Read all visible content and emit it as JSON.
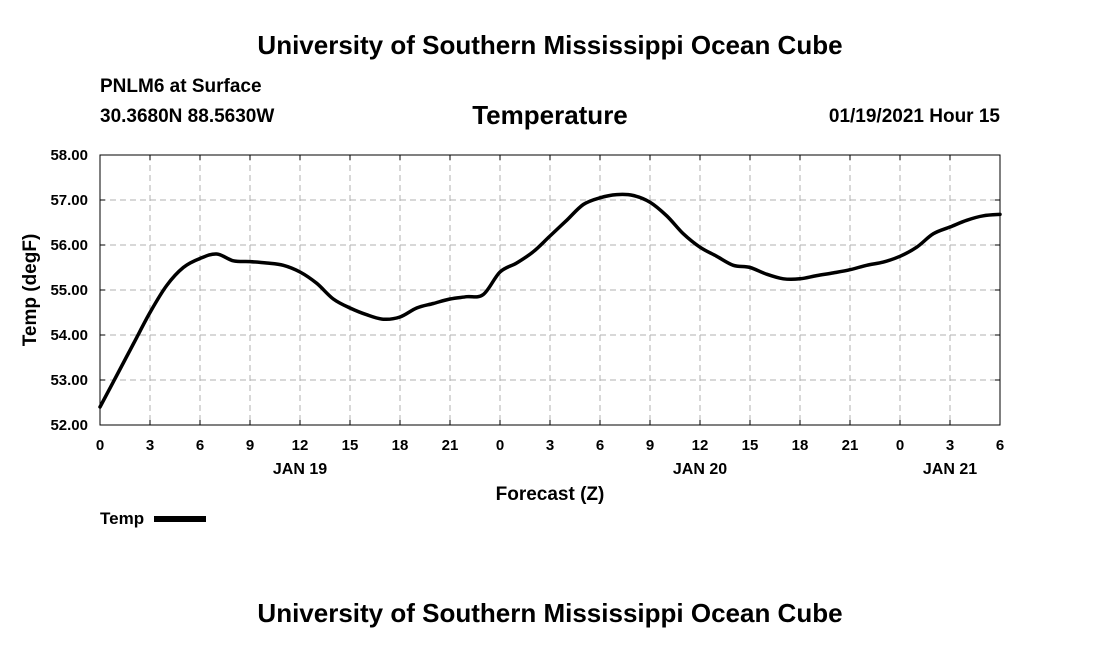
{
  "header": {
    "title": "University of Southern Mississippi Ocean Cube",
    "station": "PNLM6 at Surface",
    "coords": "30.3680N 88.5630W",
    "variable": "Temperature",
    "datetime": "01/19/2021 Hour 15"
  },
  "footer": {
    "title": "University of Southern Mississippi Ocean Cube"
  },
  "legend": {
    "label": "Temp"
  },
  "chart_data": {
    "type": "line",
    "title": "Temperature",
    "xlabel": "Forecast (Z)",
    "ylabel": "Temp (degF)",
    "ylim": [
      52.0,
      58.0
    ],
    "xlim": [
      0,
      54
    ],
    "grid": true,
    "yticks": [
      "52.00",
      "53.00",
      "54.00",
      "55.00",
      "56.00",
      "57.00",
      "58.00"
    ],
    "ytick_values": [
      52,
      53,
      54,
      55,
      56,
      57,
      58
    ],
    "xtick_hours": [
      0,
      3,
      6,
      9,
      12,
      15,
      18,
      21,
      24,
      27,
      30,
      33,
      36,
      39,
      42,
      45,
      48,
      51,
      54
    ],
    "xtick_labels": [
      "0",
      "3",
      "6",
      "9",
      "12",
      "15",
      "18",
      "21",
      "0",
      "3",
      "6",
      "9",
      "12",
      "15",
      "18",
      "21",
      "0",
      "3",
      "6"
    ],
    "day_labels": [
      {
        "hour": 12,
        "label": "JAN 19"
      },
      {
        "hour": 36,
        "label": "JAN 20"
      },
      {
        "hour": 51,
        "label": "JAN 21"
      }
    ],
    "series": [
      {
        "name": "Temp",
        "color": "#000000",
        "x": [
          0,
          1,
          2,
          3,
          4,
          5,
          6,
          7,
          8,
          9,
          10,
          11,
          12,
          13,
          14,
          15,
          16,
          17,
          18,
          19,
          20,
          21,
          22,
          23,
          24,
          25,
          26,
          27,
          28,
          29,
          30,
          31,
          32,
          33,
          34,
          35,
          36,
          37,
          38,
          39,
          40,
          41,
          42,
          43,
          44,
          45,
          46,
          47,
          48,
          49,
          50,
          51,
          52,
          53,
          54
        ],
        "y": [
          52.4,
          53.1,
          53.8,
          54.5,
          55.1,
          55.5,
          55.7,
          55.8,
          55.65,
          55.63,
          55.6,
          55.55,
          55.4,
          55.15,
          54.8,
          54.6,
          54.45,
          54.35,
          54.4,
          54.6,
          54.7,
          54.8,
          54.85,
          54.9,
          55.4,
          55.6,
          55.85,
          56.2,
          56.55,
          56.9,
          57.05,
          57.12,
          57.1,
          56.95,
          56.65,
          56.25,
          55.95,
          55.75,
          55.55,
          55.5,
          55.35,
          55.25,
          55.25,
          55.32,
          55.38,
          55.45,
          55.55,
          55.62,
          55.75,
          55.95,
          56.25,
          56.4,
          56.55,
          56.65,
          56.68
        ]
      }
    ]
  }
}
